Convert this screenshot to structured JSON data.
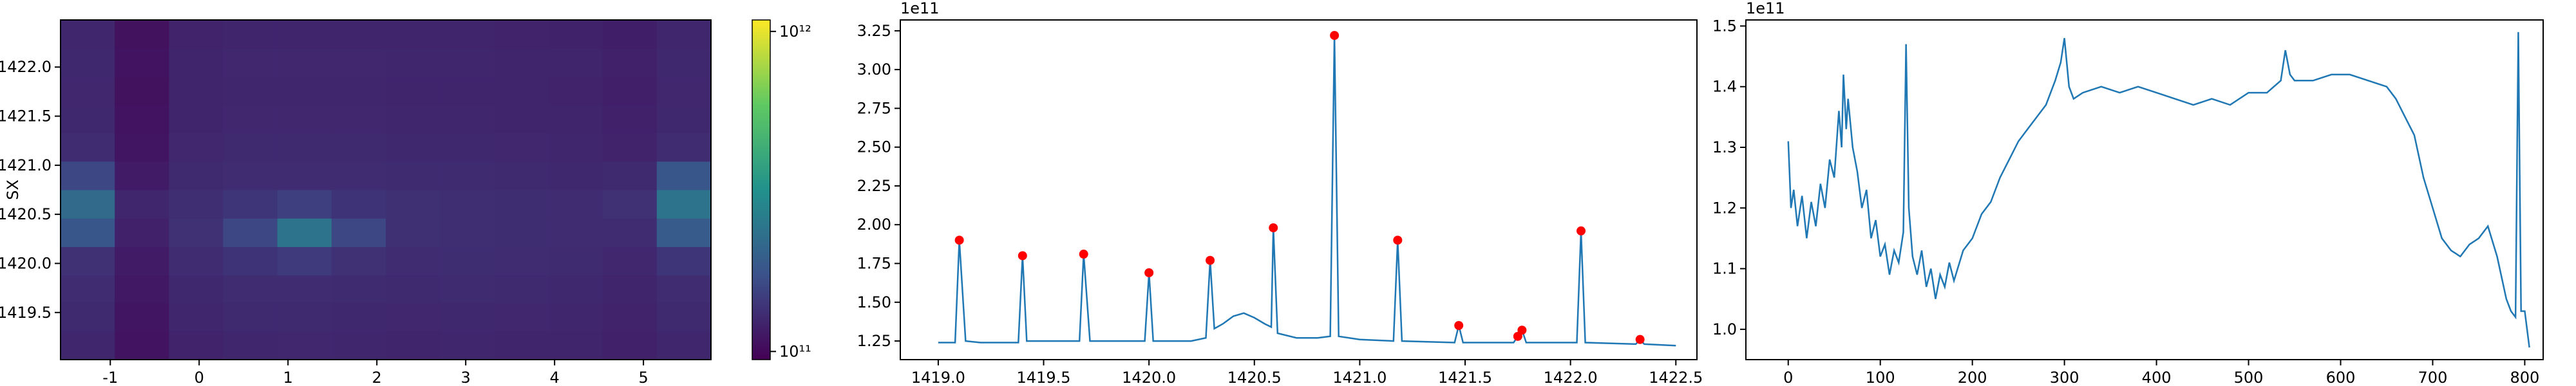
{
  "chart_data": [
    {
      "type": "heatmap",
      "ylabel": "SX",
      "xlim": [
        -1.56,
        5.76
      ],
      "ylim": [
        1419.02,
        1422.48
      ],
      "xticks": [
        -1,
        0,
        1,
        2,
        3,
        4,
        5
      ],
      "yticks": [
        {
          "value": 1419.5,
          "label": "1419.5"
        },
        {
          "value": 1420.0,
          "label": "1420.0"
        },
        {
          "value": 1420.5,
          "label": "1420.5"
        },
        {
          "value": 1421.0,
          "label": "1421.0"
        },
        {
          "value": 1421.5,
          "label": "1421.5"
        },
        {
          "value": 1422.0,
          "label": "1422.0"
        }
      ],
      "x_edges": [
        -1.56,
        -0.95,
        -0.34,
        0.27,
        0.88,
        1.49,
        2.1,
        2.71,
        3.32,
        3.93,
        4.54,
        5.15,
        5.76
      ],
      "y_edges": [
        1419.02,
        1419.31,
        1419.6,
        1419.88,
        1420.17,
        1420.46,
        1420.75,
        1421.04,
        1421.33,
        1421.61,
        1421.9,
        1422.19,
        1422.48
      ],
      "z": [
        [
          125000000000.0,
          108000000000.0,
          122000000000.0,
          125000000000.0,
          126000000000.0,
          125000000000.0,
          124000000000.0,
          125000000000.0,
          124000000000.0,
          123000000000.0,
          120000000000.0,
          125000000000.0
        ],
        [
          128000000000.0,
          110000000000.0,
          125000000000.0,
          128000000000.0,
          128000000000.0,
          127000000000.0,
          126000000000.0,
          127000000000.0,
          126000000000.0,
          125000000000.0,
          122000000000.0,
          128000000000.0
        ],
        [
          130000000000.0,
          112000000000.0,
          127000000000.0,
          130000000000.0,
          130000000000.0,
          129000000000.0,
          128000000000.0,
          129000000000.0,
          128000000000.0,
          127000000000.0,
          124000000000.0,
          130000000000.0
        ],
        [
          135000000000.0,
          115000000000.0,
          130000000000.0,
          138000000000.0,
          145000000000.0,
          135000000000.0,
          130000000000.0,
          131000000000.0,
          130000000000.0,
          129000000000.0,
          126000000000.0,
          140000000000.0
        ],
        [
          180000000000.0,
          120000000000.0,
          135000000000.0,
          160000000000.0,
          240000000000.0,
          160000000000.0,
          133000000000.0,
          132000000000.0,
          131000000000.0,
          130000000000.0,
          130000000000.0,
          190000000000.0
        ],
        [
          220000000000.0,
          125000000000.0,
          132000000000.0,
          140000000000.0,
          150000000000.0,
          138000000000.0,
          133000000000.0,
          132000000000.0,
          131000000000.0,
          130000000000.0,
          135000000000.0,
          240000000000.0
        ],
        [
          160000000000.0,
          115000000000.0,
          128000000000.0,
          130000000000.0,
          130000000000.0,
          130000000000.0,
          129000000000.0,
          129000000000.0,
          128000000000.0,
          127000000000.0,
          128000000000.0,
          180000000000.0
        ],
        [
          130000000000.0,
          110000000000.0,
          126000000000.0,
          128000000000.0,
          128000000000.0,
          128000000000.0,
          127000000000.0,
          127000000000.0,
          126000000000.0,
          125000000000.0,
          122000000000.0,
          130000000000.0
        ],
        [
          127000000000.0,
          108000000000.0,
          124000000000.0,
          126000000000.0,
          126000000000.0,
          126000000000.0,
          125000000000.0,
          125000000000.0,
          124000000000.0,
          123000000000.0,
          120000000000.0,
          127000000000.0
        ],
        [
          126000000000.0,
          107000000000.0,
          123000000000.0,
          125000000000.0,
          125000000000.0,
          125000000000.0,
          124000000000.0,
          124000000000.0,
          123000000000.0,
          122000000000.0,
          119000000000.0,
          126000000000.0
        ],
        [
          127000000000.0,
          108000000000.0,
          124000000000.0,
          126000000000.0,
          126000000000.0,
          126000000000.0,
          125000000000.0,
          125000000000.0,
          124000000000.0,
          123000000000.0,
          120000000000.0,
          127000000000.0
        ],
        [
          125000000000.0,
          107000000000.0,
          122000000000.0,
          124000000000.0,
          124000000000.0,
          124000000000.0,
          123000000000.0,
          123000000000.0,
          122000000000.0,
          121000000000.0,
          118000000000.0,
          125000000000.0
        ]
      ],
      "colorbar": {
        "log": true,
        "lim": [
          94300000000.0,
          1086000000000.0
        ],
        "ticks": [
          {
            "value": 100000000000.0,
            "label": "10¹¹"
          },
          {
            "value": 1000000000000.0,
            "label": "10¹²"
          }
        ]
      }
    },
    {
      "type": "line",
      "offset_label": "1e11",
      "xlim": [
        1418.82,
        1422.6
      ],
      "ylim": [
        1.13,
        3.32
      ],
      "xticks": [
        {
          "value": 1419.0,
          "label": "1419.0"
        },
        1419.5,
        {
          "value": 1420.0,
          "label": "1420.0"
        },
        1420.5,
        {
          "value": 1421.0,
          "label": "1421.0"
        },
        1421.5,
        {
          "value": 1422.0,
          "label": "1422.0"
        },
        1422.5
      ],
      "yticks": [
        1.25,
        {
          "value": 1.5,
          "label": "1.50"
        },
        1.75,
        {
          "value": 2.0,
          "label": "2.00"
        },
        2.25,
        {
          "value": 2.5,
          "label": "2.50"
        },
        2.75,
        {
          "value": 3.0,
          "label": "3.00"
        },
        3.25
      ],
      "series": [
        {
          "color": "#1f77b4",
          "marker": false,
          "x": [
            1419.0,
            1419.08,
            1419.1,
            1419.13,
            1419.2,
            1419.38,
            1419.4,
            1419.42,
            1419.6,
            1419.67,
            1419.69,
            1419.72,
            1419.98,
            1420.0,
            1420.02,
            1420.2,
            1420.27,
            1420.29,
            1420.31,
            1420.35,
            1420.4,
            1420.45,
            1420.5,
            1420.55,
            1420.58,
            1420.59,
            1420.61,
            1420.7,
            1420.8,
            1420.86,
            1420.88,
            1420.9,
            1421.0,
            1421.16,
            1421.18,
            1421.2,
            1421.45,
            1421.47,
            1421.49,
            1421.73,
            1421.75,
            1421.77,
            1421.79,
            1422.03,
            1422.05,
            1422.07,
            1422.31,
            1422.33,
            1422.35,
            1422.5
          ],
          "values": [
            1.24,
            1.24,
            1.9,
            1.25,
            1.24,
            1.24,
            1.8,
            1.25,
            1.25,
            1.25,
            1.81,
            1.25,
            1.25,
            1.69,
            1.25,
            1.25,
            1.27,
            1.77,
            1.33,
            1.36,
            1.41,
            1.43,
            1.4,
            1.36,
            1.34,
            1.98,
            1.3,
            1.27,
            1.27,
            1.28,
            3.22,
            1.28,
            1.26,
            1.25,
            1.9,
            1.25,
            1.24,
            1.35,
            1.24,
            1.24,
            1.28,
            1.32,
            1.24,
            1.24,
            1.96,
            1.24,
            1.23,
            1.26,
            1.23,
            1.22
          ]
        },
        {
          "color": "#ff0000",
          "marker": true,
          "x": [
            1419.1,
            1419.4,
            1419.69,
            1420.0,
            1420.29,
            1420.59,
            1420.88,
            1421.18,
            1421.47,
            1421.75,
            1421.77,
            1422.05,
            1422.33
          ],
          "values": [
            1.9,
            1.8,
            1.81,
            1.69,
            1.77,
            1.98,
            3.22,
            1.9,
            1.35,
            1.28,
            1.32,
            1.96,
            1.26
          ]
        }
      ]
    },
    {
      "type": "line",
      "offset_label": "1e11",
      "xlim": [
        -46,
        820
      ],
      "ylim": [
        0.95,
        1.51
      ],
      "xticks": [
        0,
        100,
        200,
        300,
        400,
        500,
        600,
        700,
        800
      ],
      "yticks": [
        {
          "value": 1.0,
          "label": "1.0"
        },
        1.1,
        1.2,
        1.3,
        1.4,
        1.5
      ],
      "series": [
        {
          "color": "#1f77b4",
          "marker": false,
          "x": [
            0,
            3,
            6,
            10,
            15,
            20,
            25,
            30,
            35,
            40,
            45,
            50,
            55,
            58,
            60,
            63,
            65,
            70,
            75,
            80,
            85,
            90,
            95,
            100,
            105,
            110,
            115,
            120,
            125,
            128,
            131,
            135,
            140,
            145,
            150,
            155,
            160,
            165,
            170,
            175,
            180,
            190,
            200,
            210,
            220,
            230,
            240,
            250,
            260,
            270,
            280,
            290,
            296,
            300,
            305,
            310,
            320,
            340,
            360,
            380,
            400,
            420,
            440,
            460,
            480,
            500,
            520,
            535,
            540,
            545,
            550,
            570,
            590,
            610,
            630,
            650,
            660,
            670,
            680,
            690,
            700,
            710,
            720,
            730,
            740,
            750,
            760,
            770,
            780,
            785,
            790,
            793,
            796,
            800,
            805
          ],
          "values": [
            1.31,
            1.2,
            1.23,
            1.17,
            1.22,
            1.15,
            1.21,
            1.17,
            1.24,
            1.2,
            1.28,
            1.25,
            1.36,
            1.3,
            1.42,
            1.33,
            1.38,
            1.3,
            1.26,
            1.2,
            1.23,
            1.15,
            1.18,
            1.12,
            1.14,
            1.09,
            1.13,
            1.11,
            1.16,
            1.47,
            1.2,
            1.12,
            1.09,
            1.13,
            1.07,
            1.1,
            1.05,
            1.09,
            1.07,
            1.11,
            1.08,
            1.13,
            1.15,
            1.19,
            1.21,
            1.25,
            1.28,
            1.31,
            1.33,
            1.35,
            1.37,
            1.41,
            1.44,
            1.48,
            1.4,
            1.38,
            1.39,
            1.4,
            1.39,
            1.4,
            1.39,
            1.38,
            1.37,
            1.38,
            1.37,
            1.39,
            1.39,
            1.41,
            1.46,
            1.42,
            1.41,
            1.41,
            1.42,
            1.42,
            1.41,
            1.4,
            1.38,
            1.35,
            1.32,
            1.25,
            1.2,
            1.15,
            1.13,
            1.12,
            1.14,
            1.15,
            1.17,
            1.12,
            1.05,
            1.03,
            1.02,
            1.49,
            1.03,
            1.03,
            0.97
          ]
        }
      ]
    }
  ]
}
